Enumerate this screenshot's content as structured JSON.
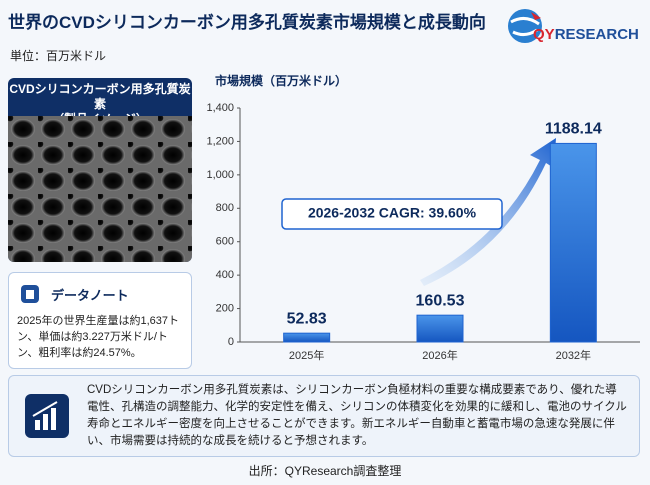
{
  "header": {
    "title": "世界のCVDシリコンカーボン用多孔質炭素市場規模と成長動向",
    "unit": "単位：百万米ドル",
    "logo_a": "QY",
    "logo_b": "RESEARCH"
  },
  "image_panel": {
    "title": "CVDシリコンカーボン用多孔質炭素",
    "subtitle": "（製品イメージ）"
  },
  "data_note": {
    "title": "データノート",
    "text": "2025年の世界生産量は約1,637トン、単価は約3.227万米ドル/トン、粗利率は約24.57%。"
  },
  "chart_data": {
    "type": "bar",
    "title": "市場規模（百万米ドル）",
    "categories": [
      "2025年",
      "2026年",
      "2032年"
    ],
    "values": [
      52.83,
      160.53,
      1188.14
    ],
    "color": "#1e63d0",
    "ylim": [
      0,
      1400
    ],
    "yticks": [
      0,
      200,
      400,
      600,
      800,
      {
        "value": 1000,
        "label": "1,000"
      },
      {
        "value": 1200,
        "label": "1,200"
      },
      {
        "value": 1400,
        "label": "1,400"
      }
    ],
    "grid": false,
    "annotation": "2026-2032 CAGR: 39.60%"
  },
  "summary": {
    "text": "CVDシリコンカーボン用多孔質炭素は、シリコンカーボン負極材料の重要な構成要素であり、優れた導電性、孔構造の調整能力、化学的安定性を備え、シリコンの体積変化を効果的に緩和し、電池のサイクル寿命とエネルギー密度を向上させることができます。新エネルギー自動車と蓄電市場の急速な発展に伴い、市場需要は持続的な成長を続けると予想されます。"
  },
  "source": "出所：QYResearch調査整理"
}
